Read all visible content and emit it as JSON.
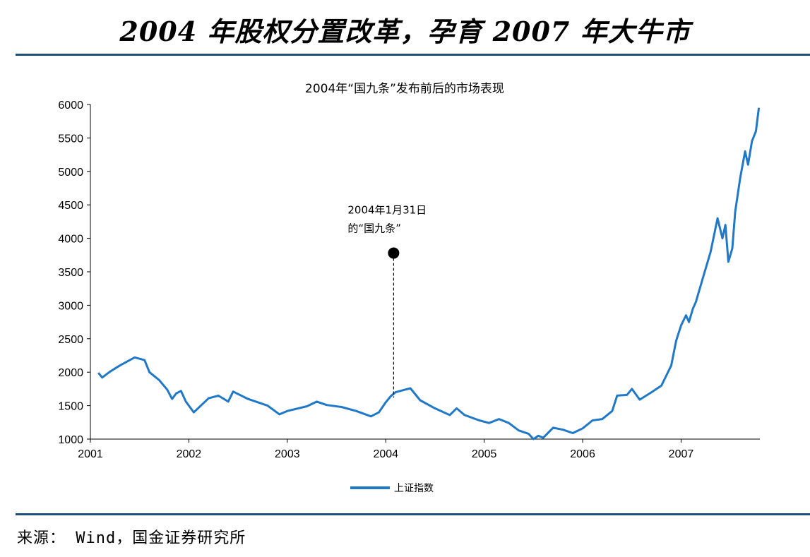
{
  "page": {
    "title": "2004 年股权分置改革，孕育 2007 年大牛市",
    "source_label": "来源：",
    "source_text": " Wind，国金证券研究所"
  },
  "colors": {
    "line": "#1f78c8",
    "rule": "#1f4e79",
    "axis": "#000000"
  },
  "chart_data": {
    "type": "line",
    "title": "2004年“国九条”发布前后的市场表现",
    "xlabel": "",
    "ylabel": "",
    "x_ticks": [
      "2001",
      "2002",
      "2003",
      "2004",
      "2005",
      "2006",
      "2007"
    ],
    "y_ticks": [
      1000,
      1500,
      2000,
      2500,
      3000,
      3500,
      4000,
      4500,
      5000,
      5500,
      6000
    ],
    "xlim": [
      2001.0,
      2007.8
    ],
    "ylim": [
      1000,
      6000
    ],
    "grid": false,
    "legend": "bottom-center",
    "series": [
      {
        "name": "上证指数",
        "points": [
          [
            2001.08,
            1990
          ],
          [
            2001.12,
            1920
          ],
          [
            2001.2,
            2010
          ],
          [
            2001.3,
            2100
          ],
          [
            2001.4,
            2180
          ],
          [
            2001.45,
            2220
          ],
          [
            2001.55,
            2180
          ],
          [
            2001.6,
            2000
          ],
          [
            2001.7,
            1880
          ],
          [
            2001.78,
            1740
          ],
          [
            2001.83,
            1600
          ],
          [
            2001.87,
            1680
          ],
          [
            2001.92,
            1720
          ],
          [
            2001.97,
            1560
          ],
          [
            2002.05,
            1400
          ],
          [
            2002.1,
            1470
          ],
          [
            2002.2,
            1610
          ],
          [
            2002.3,
            1650
          ],
          [
            2002.4,
            1560
          ],
          [
            2002.45,
            1710
          ],
          [
            2002.6,
            1600
          ],
          [
            2002.8,
            1500
          ],
          [
            2002.92,
            1370
          ],
          [
            2003.0,
            1420
          ],
          [
            2003.2,
            1490
          ],
          [
            2003.3,
            1560
          ],
          [
            2003.4,
            1510
          ],
          [
            2003.55,
            1480
          ],
          [
            2003.7,
            1420
          ],
          [
            2003.85,
            1340
          ],
          [
            2003.93,
            1400
          ],
          [
            2004.0,
            1550
          ],
          [
            2004.05,
            1640
          ],
          [
            2004.1,
            1700
          ],
          [
            2004.2,
            1740
          ],
          [
            2004.25,
            1760
          ],
          [
            2004.35,
            1580
          ],
          [
            2004.5,
            1460
          ],
          [
            2004.65,
            1360
          ],
          [
            2004.72,
            1460
          ],
          [
            2004.8,
            1360
          ],
          [
            2004.95,
            1280
          ],
          [
            2005.05,
            1240
          ],
          [
            2005.15,
            1300
          ],
          [
            2005.25,
            1240
          ],
          [
            2005.35,
            1130
          ],
          [
            2005.45,
            1080
          ],
          [
            2005.5,
            1000
          ],
          [
            2005.55,
            1050
          ],
          [
            2005.6,
            1020
          ],
          [
            2005.7,
            1170
          ],
          [
            2005.8,
            1140
          ],
          [
            2005.9,
            1090
          ],
          [
            2006.0,
            1160
          ],
          [
            2006.1,
            1280
          ],
          [
            2006.2,
            1300
          ],
          [
            2006.3,
            1420
          ],
          [
            2006.35,
            1650
          ],
          [
            2006.45,
            1660
          ],
          [
            2006.5,
            1750
          ],
          [
            2006.58,
            1590
          ],
          [
            2006.7,
            1700
          ],
          [
            2006.8,
            1800
          ],
          [
            2006.85,
            1950
          ],
          [
            2006.9,
            2100
          ],
          [
            2006.95,
            2470
          ],
          [
            2007.0,
            2700
          ],
          [
            2007.05,
            2850
          ],
          [
            2007.08,
            2750
          ],
          [
            2007.12,
            2950
          ],
          [
            2007.15,
            3050
          ],
          [
            2007.22,
            3400
          ],
          [
            2007.3,
            3800
          ],
          [
            2007.37,
            4300
          ],
          [
            2007.42,
            4000
          ],
          [
            2007.45,
            4200
          ],
          [
            2007.48,
            3650
          ],
          [
            2007.52,
            3850
          ],
          [
            2007.55,
            4400
          ],
          [
            2007.6,
            4900
          ],
          [
            2007.65,
            5300
          ],
          [
            2007.68,
            5100
          ],
          [
            2007.72,
            5450
          ],
          [
            2007.76,
            5600
          ],
          [
            2007.79,
            5950
          ]
        ]
      }
    ],
    "annotation": {
      "x": 2004.08,
      "y": 3780,
      "line_from_y": 1620,
      "lines": [
        "2004年1月31日",
        "的“国九条”"
      ]
    }
  }
}
